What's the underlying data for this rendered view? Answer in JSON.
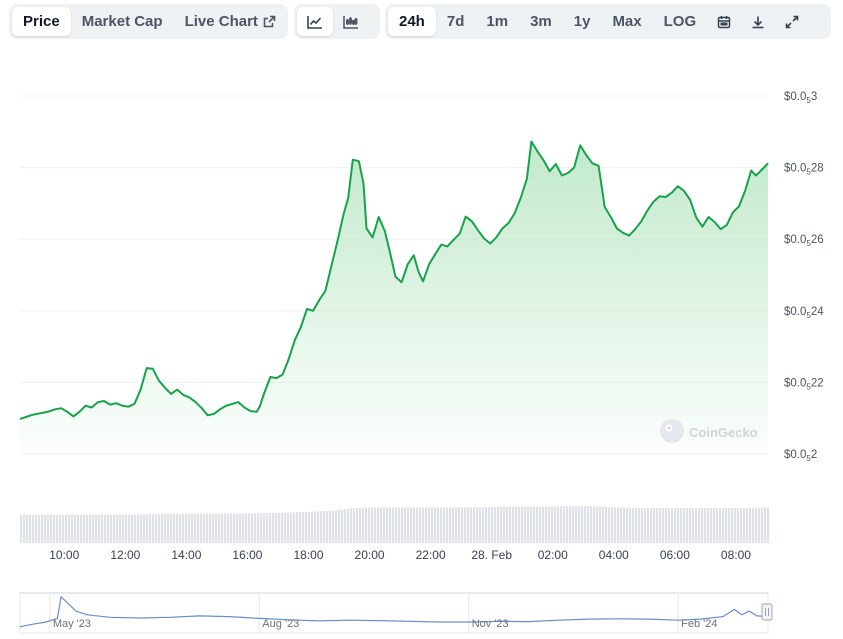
{
  "tabs": {
    "type": [
      {
        "label": "Price",
        "active": true
      },
      {
        "label": "Market Cap",
        "active": false
      },
      {
        "label": "Live Chart",
        "active": false,
        "icon": "external-link-icon"
      }
    ],
    "view_icons": [
      "line-chart-icon",
      "candlestick-chart-icon"
    ],
    "ranges": [
      {
        "label": "24h",
        "active": true
      },
      {
        "label": "7d",
        "active": false
      },
      {
        "label": "1m",
        "active": false
      },
      {
        "label": "3m",
        "active": false
      },
      {
        "label": "1y",
        "active": false
      },
      {
        "label": "Max",
        "active": false
      },
      {
        "label": "LOG",
        "active": false
      }
    ],
    "tool_icons": [
      "calendar-icon",
      "download-icon",
      "fullscreen-icon"
    ]
  },
  "watermark": "CoinGecko",
  "colors": {
    "line": "#16a34a",
    "fill_top": "#bfe8c9",
    "volume": "#dfe3e8",
    "grid": "#eef0f3",
    "nav_line": "#6b8bd1"
  },
  "chart_data": {
    "type": "area",
    "y_axis": {
      "prefix": "$0.0",
      "subscript": "5",
      "ticks": [
        {
          "main": "3",
          "value": 3e-06
        },
        {
          "main": "28",
          "value": 2.8e-06
        },
        {
          "main": "26",
          "value": 2.6e-06
        },
        {
          "main": "24",
          "value": 2.4e-06
        },
        {
          "main": "22",
          "value": 2.2e-06
        },
        {
          "main": "2",
          "value": 2e-06
        }
      ],
      "ylim": [
        2e-06,
        3e-06
      ]
    },
    "x_ticks": [
      {
        "label": "10:00",
        "t": 1.2
      },
      {
        "label": "12:00",
        "t": 3.2
      },
      {
        "label": "14:00",
        "t": 5.2
      },
      {
        "label": "16:00",
        "t": 7.2
      },
      {
        "label": "18:00",
        "t": 9.2
      },
      {
        "label": "20:00",
        "t": 11.2
      },
      {
        "label": "22:00",
        "t": 13.2
      },
      {
        "label": "28. Feb",
        "t": 15.2
      },
      {
        "label": "02:00",
        "t": 17.2
      },
      {
        "label": "04:00",
        "t": 19.2
      },
      {
        "label": "06:00",
        "t": 21.2
      },
      {
        "label": "08:00",
        "t": 23.2
      }
    ],
    "x_range": [
      -0.25,
      24.25
    ],
    "series": [
      {
        "points": [
          [
            -0.25,
            2.098
          ],
          [
            -0.1,
            2.102
          ],
          [
            0.1,
            2.108
          ],
          [
            0.3,
            2.112
          ],
          [
            0.5,
            2.115
          ],
          [
            0.7,
            2.119
          ],
          [
            0.9,
            2.125
          ],
          [
            1.1,
            2.128
          ],
          [
            1.3,
            2.118
          ],
          [
            1.5,
            2.105
          ],
          [
            1.7,
            2.118
          ],
          [
            1.9,
            2.135
          ],
          [
            2.1,
            2.13
          ],
          [
            2.3,
            2.145
          ],
          [
            2.5,
            2.148
          ],
          [
            2.7,
            2.138
          ],
          [
            2.9,
            2.142
          ],
          [
            3.1,
            2.135
          ],
          [
            3.3,
            2.132
          ],
          [
            3.5,
            2.14
          ],
          [
            3.7,
            2.18
          ],
          [
            3.9,
            2.24
          ],
          [
            4.1,
            2.238
          ],
          [
            4.3,
            2.205
          ],
          [
            4.5,
            2.185
          ],
          [
            4.7,
            2.168
          ],
          [
            4.9,
            2.18
          ],
          [
            5.1,
            2.165
          ],
          [
            5.3,
            2.158
          ],
          [
            5.5,
            2.145
          ],
          [
            5.7,
            2.128
          ],
          [
            5.9,
            2.108
          ],
          [
            6.1,
            2.112
          ],
          [
            6.3,
            2.125
          ],
          [
            6.5,
            2.135
          ],
          [
            6.7,
            2.14
          ],
          [
            6.9,
            2.145
          ],
          [
            7.1,
            2.13
          ],
          [
            7.3,
            2.12
          ],
          [
            7.5,
            2.118
          ],
          [
            7.6,
            2.132
          ],
          [
            7.75,
            2.17
          ],
          [
            7.95,
            2.215
          ],
          [
            8.15,
            2.212
          ],
          [
            8.35,
            2.222
          ],
          [
            8.55,
            2.265
          ],
          [
            8.75,
            2.318
          ],
          [
            8.95,
            2.355
          ],
          [
            9.15,
            2.405
          ],
          [
            9.35,
            2.4
          ],
          [
            9.55,
            2.43
          ],
          [
            9.75,
            2.455
          ],
          [
            9.95,
            2.525
          ],
          [
            10.15,
            2.595
          ],
          [
            10.35,
            2.67
          ],
          [
            10.5,
            2.715
          ],
          [
            10.65,
            2.822
          ],
          [
            10.85,
            2.818
          ],
          [
            11.0,
            2.755
          ],
          [
            11.1,
            2.63
          ],
          [
            11.3,
            2.605
          ],
          [
            11.5,
            2.662
          ],
          [
            11.7,
            2.623
          ],
          [
            11.85,
            2.57
          ],
          [
            12.05,
            2.495
          ],
          [
            12.25,
            2.48
          ],
          [
            12.45,
            2.53
          ],
          [
            12.65,
            2.555
          ],
          [
            12.8,
            2.51
          ],
          [
            12.95,
            2.482
          ],
          [
            13.15,
            2.53
          ],
          [
            13.35,
            2.558
          ],
          [
            13.55,
            2.585
          ],
          [
            13.75,
            2.58
          ],
          [
            13.95,
            2.598
          ],
          [
            14.15,
            2.615
          ],
          [
            14.35,
            2.663
          ],
          [
            14.55,
            2.65
          ],
          [
            14.75,
            2.625
          ],
          [
            14.95,
            2.602
          ],
          [
            15.15,
            2.588
          ],
          [
            15.35,
            2.605
          ],
          [
            15.55,
            2.63
          ],
          [
            15.75,
            2.645
          ],
          [
            15.95,
            2.672
          ],
          [
            16.15,
            2.715
          ],
          [
            16.35,
            2.768
          ],
          [
            16.5,
            2.873
          ],
          [
            16.7,
            2.845
          ],
          [
            16.9,
            2.82
          ],
          [
            17.1,
            2.79
          ],
          [
            17.3,
            2.81
          ],
          [
            17.5,
            2.778
          ],
          [
            17.7,
            2.785
          ],
          [
            17.9,
            2.8
          ],
          [
            18.1,
            2.862
          ],
          [
            18.3,
            2.835
          ],
          [
            18.5,
            2.812
          ],
          [
            18.7,
            2.805
          ],
          [
            18.9,
            2.69
          ],
          [
            19.1,
            2.662
          ],
          [
            19.3,
            2.63
          ],
          [
            19.5,
            2.618
          ],
          [
            19.7,
            2.61
          ],
          [
            19.9,
            2.628
          ],
          [
            20.1,
            2.65
          ],
          [
            20.3,
            2.68
          ],
          [
            20.5,
            2.705
          ],
          [
            20.7,
            2.72
          ],
          [
            20.9,
            2.718
          ],
          [
            21.1,
            2.73
          ],
          [
            21.3,
            2.748
          ],
          [
            21.5,
            2.735
          ],
          [
            21.7,
            2.71
          ],
          [
            21.9,
            2.66
          ],
          [
            22.1,
            2.635
          ],
          [
            22.3,
            2.662
          ],
          [
            22.5,
            2.648
          ],
          [
            22.7,
            2.628
          ],
          [
            22.9,
            2.64
          ],
          [
            23.1,
            2.675
          ],
          [
            23.3,
            2.692
          ],
          [
            23.5,
            2.735
          ],
          [
            23.7,
            2.792
          ],
          [
            23.85,
            2.778
          ],
          [
            24.0,
            2.79
          ],
          [
            24.25,
            2.812
          ]
        ]
      }
    ],
    "volume": {
      "range": [
        -0.25,
        24.25
      ],
      "levels": [
        [
          -0.25,
          0.56
        ],
        [
          3.5,
          0.57
        ],
        [
          4.0,
          0.58
        ],
        [
          6.5,
          0.59
        ],
        [
          8.0,
          0.6
        ],
        [
          9.0,
          0.62
        ],
        [
          10.0,
          0.65
        ],
        [
          10.6,
          0.7
        ],
        [
          11.2,
          0.71
        ],
        [
          12.0,
          0.71
        ],
        [
          14.0,
          0.71
        ],
        [
          15.5,
          0.72
        ],
        [
          16.2,
          0.73
        ],
        [
          17.0,
          0.73
        ],
        [
          18.0,
          0.74
        ],
        [
          18.8,
          0.73
        ],
        [
          19.2,
          0.71
        ],
        [
          20.5,
          0.7
        ],
        [
          22.0,
          0.7
        ],
        [
          23.0,
          0.7
        ],
        [
          24.25,
          0.71
        ]
      ]
    },
    "navigator": {
      "labels": [
        {
          "label": "May '23",
          "pos": 0.08
        },
        {
          "label": "Aug '23",
          "pos": 0.36
        },
        {
          "label": "Nov '23",
          "pos": 0.64
        },
        {
          "label": "Feb '24",
          "pos": 0.92
        }
      ],
      "points": [
        [
          0.0,
          0.12
        ],
        [
          0.02,
          0.2
        ],
        [
          0.035,
          0.25
        ],
        [
          0.05,
          0.35
        ],
        [
          0.055,
          0.95
        ],
        [
          0.065,
          0.75
        ],
        [
          0.075,
          0.55
        ],
        [
          0.09,
          0.45
        ],
        [
          0.12,
          0.38
        ],
        [
          0.16,
          0.36
        ],
        [
          0.2,
          0.38
        ],
        [
          0.24,
          0.42
        ],
        [
          0.28,
          0.4
        ],
        [
          0.32,
          0.35
        ],
        [
          0.36,
          0.31
        ],
        [
          0.4,
          0.28
        ],
        [
          0.44,
          0.3
        ],
        [
          0.48,
          0.29
        ],
        [
          0.52,
          0.27
        ],
        [
          0.56,
          0.25
        ],
        [
          0.6,
          0.25
        ],
        [
          0.64,
          0.27
        ],
        [
          0.68,
          0.26
        ],
        [
          0.72,
          0.3
        ],
        [
          0.76,
          0.33
        ],
        [
          0.8,
          0.34
        ],
        [
          0.84,
          0.33
        ],
        [
          0.88,
          0.3
        ],
        [
          0.91,
          0.33
        ],
        [
          0.94,
          0.4
        ],
        [
          0.955,
          0.6
        ],
        [
          0.965,
          0.45
        ],
        [
          0.975,
          0.55
        ],
        [
          0.985,
          0.42
        ],
        [
          1.0,
          0.4
        ]
      ]
    }
  }
}
